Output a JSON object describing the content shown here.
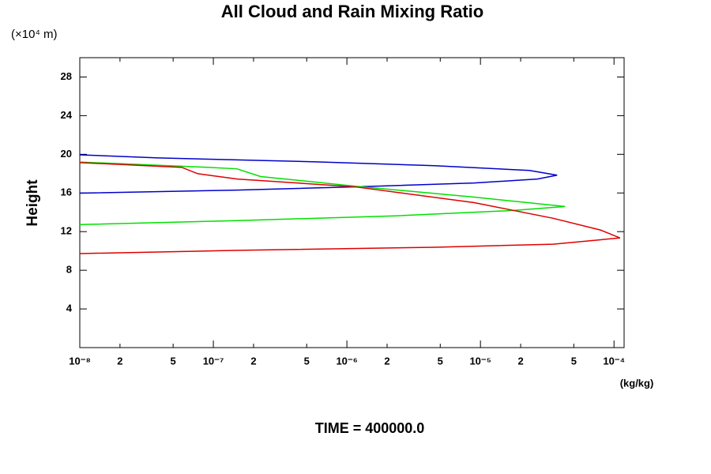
{
  "chart_data": {
    "type": "line",
    "title": "All Cloud and Rain Mixing Ratio",
    "y_unit": "(×10⁴ m)",
    "y_label": "Height",
    "x_unit": "(kg/kg)",
    "footer": "TIME = 400000.0",
    "x_log": true,
    "xlim": [
      1e-08,
      0.000119
    ],
    "ylim": [
      0,
      30
    ],
    "xticks": [
      {
        "value": 1e-08,
        "label": "10⁻⁸"
      },
      {
        "value": 2e-08,
        "label": "2"
      },
      {
        "value": 5e-08,
        "label": "5"
      },
      {
        "value": 1e-07,
        "label": "10⁻⁷"
      },
      {
        "value": 2e-07,
        "label": "2"
      },
      {
        "value": 5e-07,
        "label": "5"
      },
      {
        "value": 1e-06,
        "label": "10⁻⁶"
      },
      {
        "value": 2e-06,
        "label": "2"
      },
      {
        "value": 5e-06,
        "label": "5"
      },
      {
        "value": 1e-05,
        "label": "10⁻⁵"
      },
      {
        "value": 2e-05,
        "label": "2"
      },
      {
        "value": 5e-05,
        "label": "5"
      },
      {
        "value": 0.0001,
        "label": "10⁻⁴"
      }
    ],
    "yticks": [
      4,
      8,
      12,
      16,
      20,
      24,
      28
    ],
    "series": [
      {
        "color": "#0000cc",
        "x": [
          1e-08,
          3.86e-08,
          5.87e-07,
          4.54e-06,
          2.33e-05,
          3.75e-05,
          2.67e-05,
          8.98e-06,
          1.16e-06,
          1.51e-07,
          1e-08
        ],
        "values": [
          19.95,
          19.63,
          19.22,
          18.82,
          18.33,
          17.84,
          17.44,
          17.03,
          16.63,
          16.3,
          15.98
        ]
      },
      {
        "color": "#00e000",
        "x": [
          1e-08,
          7.62e-08,
          1.5e-07,
          2.26e-07,
          1.16e-06,
          8.98e-06,
          4.3e-05,
          1.77e-05,
          2.3e-06,
          1.51e-07,
          1e-08
        ],
        "values": [
          19.2,
          18.7,
          18.5,
          17.7,
          16.7,
          15.57,
          14.6,
          14.19,
          13.63,
          13.14,
          12.73
        ]
      },
      {
        "color": "#dd0000",
        "x": [
          1e-08,
          5.8e-08,
          7.62e-08,
          1.51e-07,
          1.16e-06,
          8.98e-06,
          3.5e-05,
          7.9e-05,
          0.000111,
          3.5e-05,
          4.54e-06,
          1.51e-07,
          1e-08
        ],
        "values": [
          19.14,
          18.65,
          18.0,
          17.44,
          16.63,
          15.0,
          13.38,
          12.17,
          11.35,
          10.7,
          10.38,
          10.06,
          9.73
        ]
      }
    ]
  }
}
